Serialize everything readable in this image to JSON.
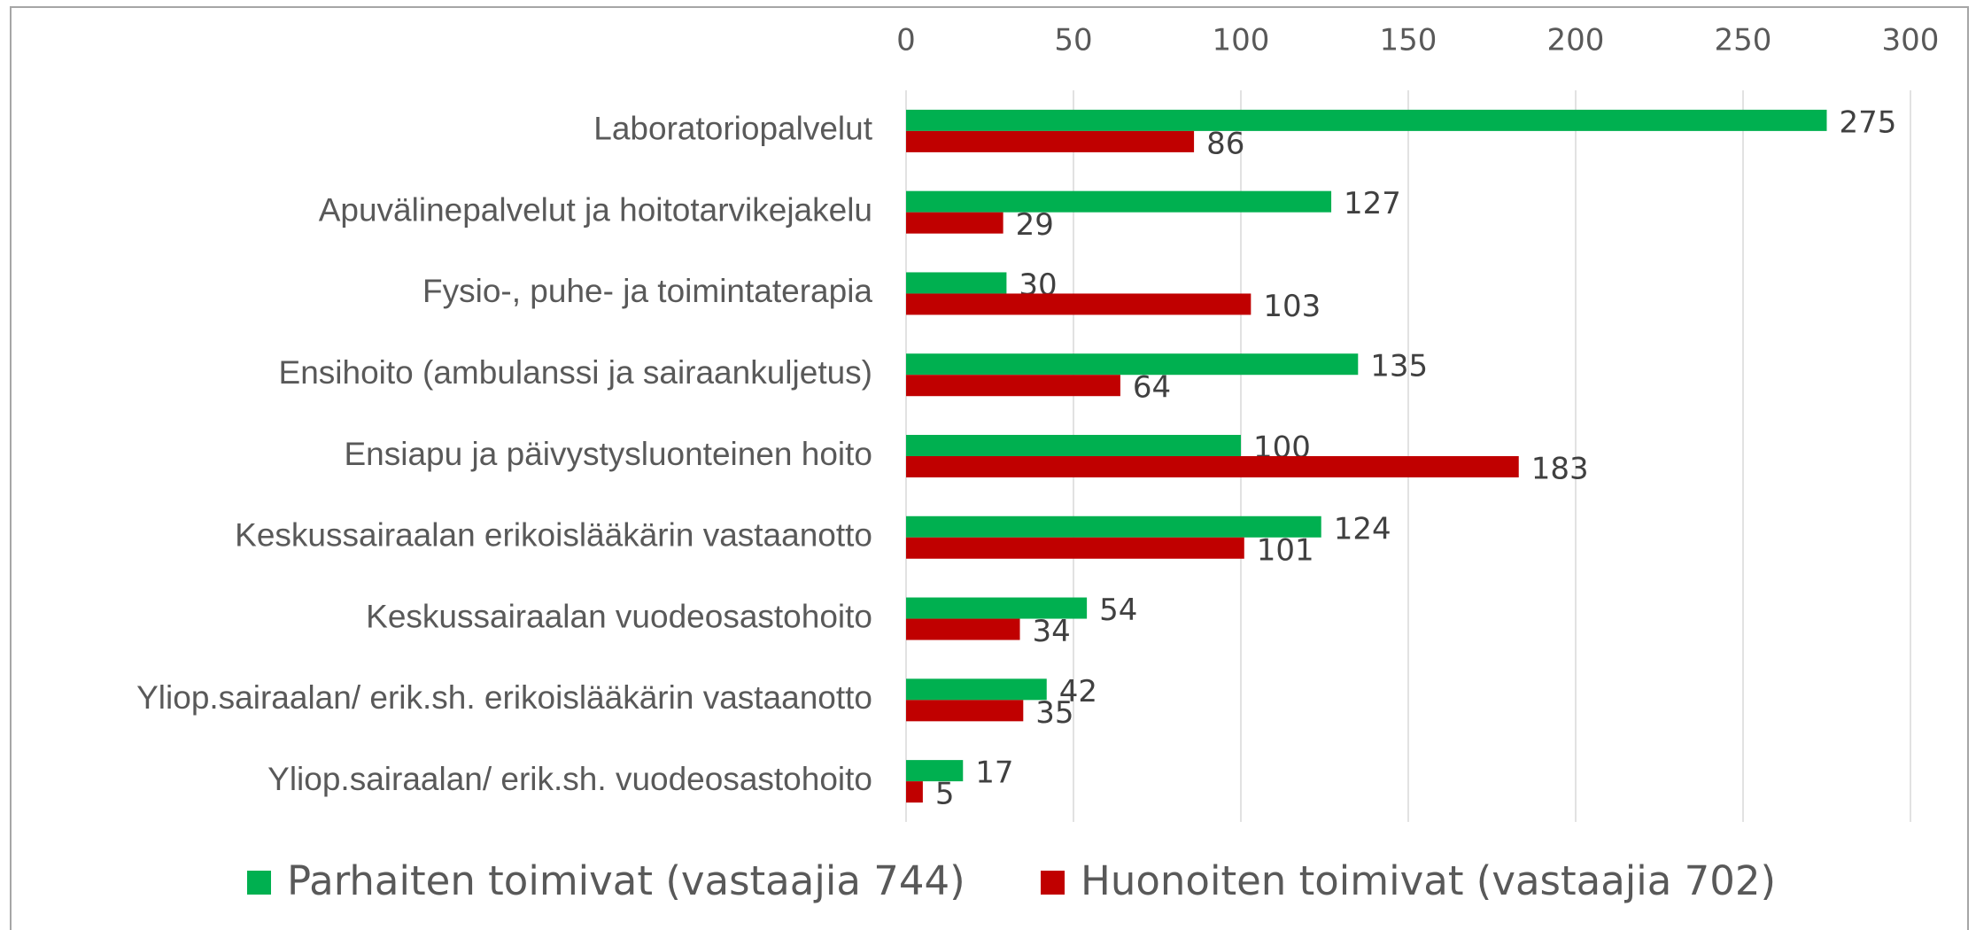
{
  "chart_data": {
    "type": "bar",
    "orientation": "horizontal",
    "categories": [
      "Laboratoriopalvelut",
      "Apuvälinepalvelut ja hoitotarvikejakelu",
      "Fysio-, puhe- ja toimintaterapia",
      "Ensihoito (ambulanssi ja sairaankuljetus)",
      "Ensiapu ja päivystysluonteinen hoito",
      "Keskussairaalan erikoislääkärin vastaanotto",
      "Keskussairaalan vuodeosastohoito",
      "Yliop.sairaalan/ erik.sh. erikoislääkärin vastaanotto",
      "Yliop.sairaalan/ erik.sh. vuodeosastohoito"
    ],
    "series": [
      {
        "name": "Parhaiten toimivat (vastaajia 744)",
        "color": "#00b050",
        "values": [
          275,
          127,
          30,
          135,
          100,
          124,
          54,
          42,
          17
        ]
      },
      {
        "name": "Huonoiten toimivat (vastaajia 702)",
        "color": "#c00000",
        "values": [
          86,
          29,
          103,
          64,
          183,
          101,
          34,
          35,
          5
        ]
      }
    ],
    "xlim": [
      0,
      300
    ],
    "xticks": [
      0,
      50,
      100,
      150,
      200,
      250,
      300
    ],
    "grid": true,
    "legend": "bottom"
  }
}
